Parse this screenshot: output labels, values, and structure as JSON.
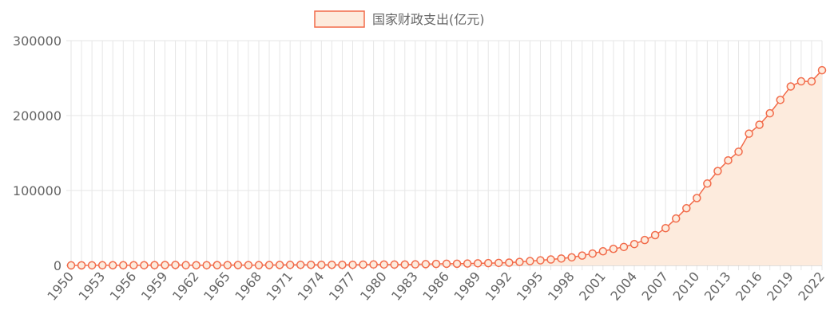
{
  "chart_data": {
    "type": "area",
    "legend_position": "top-center",
    "grid": true,
    "series": [
      {
        "name": "国家财政支出(亿元)",
        "line_color": "#f26b4a",
        "fill_color": "#fdebdd",
        "values": [
          68.1,
          122.5,
          176.0,
          220.0,
          244.1,
          262.7,
          298.5,
          295.9,
          400.4,
          543.2,
          643.7,
          356.1,
          294.9,
          332.1,
          393.8,
          460.0,
          537.7,
          439.8,
          357.8,
          525.9,
          649.4,
          732.2,
          766.4,
          809.3,
          790.8,
          820.9,
          806.2,
          843.5,
          1122.1,
          1281.8,
          1228.8,
          1138.4,
          1230.0,
          1409.5,
          1701.0,
          2004.3,
          2204.9,
          2262.2,
          2491.2,
          2823.8,
          3083.6,
          3386.6,
          3742.2,
          4642.3,
          5792.6,
          6823.7,
          7937.6,
          9233.6,
          10798.2,
          13187.7,
          15886.5,
          18902.6,
          22053.2,
          24650.0,
          28486.9,
          33930.3,
          40422.7,
          49781.4,
          62592.7,
          76299.9,
          89874.2,
          109247.8,
          125953.0,
          140212.1,
          151785.6,
          175877.8,
          187755.2,
          203085.5,
          220904.1,
          238858.4,
          245679.0,
          245673.0,
          260552.1
        ]
      }
    ],
    "x": [
      1950,
      1951,
      1952,
      1953,
      1954,
      1955,
      1956,
      1957,
      1958,
      1959,
      1960,
      1961,
      1962,
      1963,
      1964,
      1965,
      1966,
      1967,
      1968,
      1969,
      1970,
      1971,
      1972,
      1973,
      1974,
      1975,
      1976,
      1977,
      1978,
      1979,
      1980,
      1981,
      1982,
      1983,
      1984,
      1985,
      1986,
      1987,
      1988,
      1989,
      1990,
      1991,
      1992,
      1993,
      1994,
      1995,
      1996,
      1997,
      1998,
      1999,
      2000,
      2001,
      2002,
      2003,
      2004,
      2005,
      2006,
      2007,
      2008,
      2009,
      2010,
      2011,
      2012,
      2013,
      2014,
      2015,
      2016,
      2017,
      2018,
      2019,
      2020,
      2021,
      2022
    ],
    "x_tick_labels": [
      "1950",
      "1953",
      "1956",
      "1959",
      "1962",
      "1965",
      "1968",
      "1971",
      "1974",
      "1977",
      "1980",
      "1983",
      "1986",
      "1989",
      "1992",
      "1995",
      "1998",
      "2001",
      "2004",
      "2007",
      "2010",
      "2013",
      "2016",
      "2019",
      "2022"
    ],
    "y_tick_labels": [
      "0",
      "100000",
      "200000",
      "300000"
    ],
    "ylim": [
      0,
      300000
    ],
    "xlabel": "",
    "ylabel": ""
  }
}
